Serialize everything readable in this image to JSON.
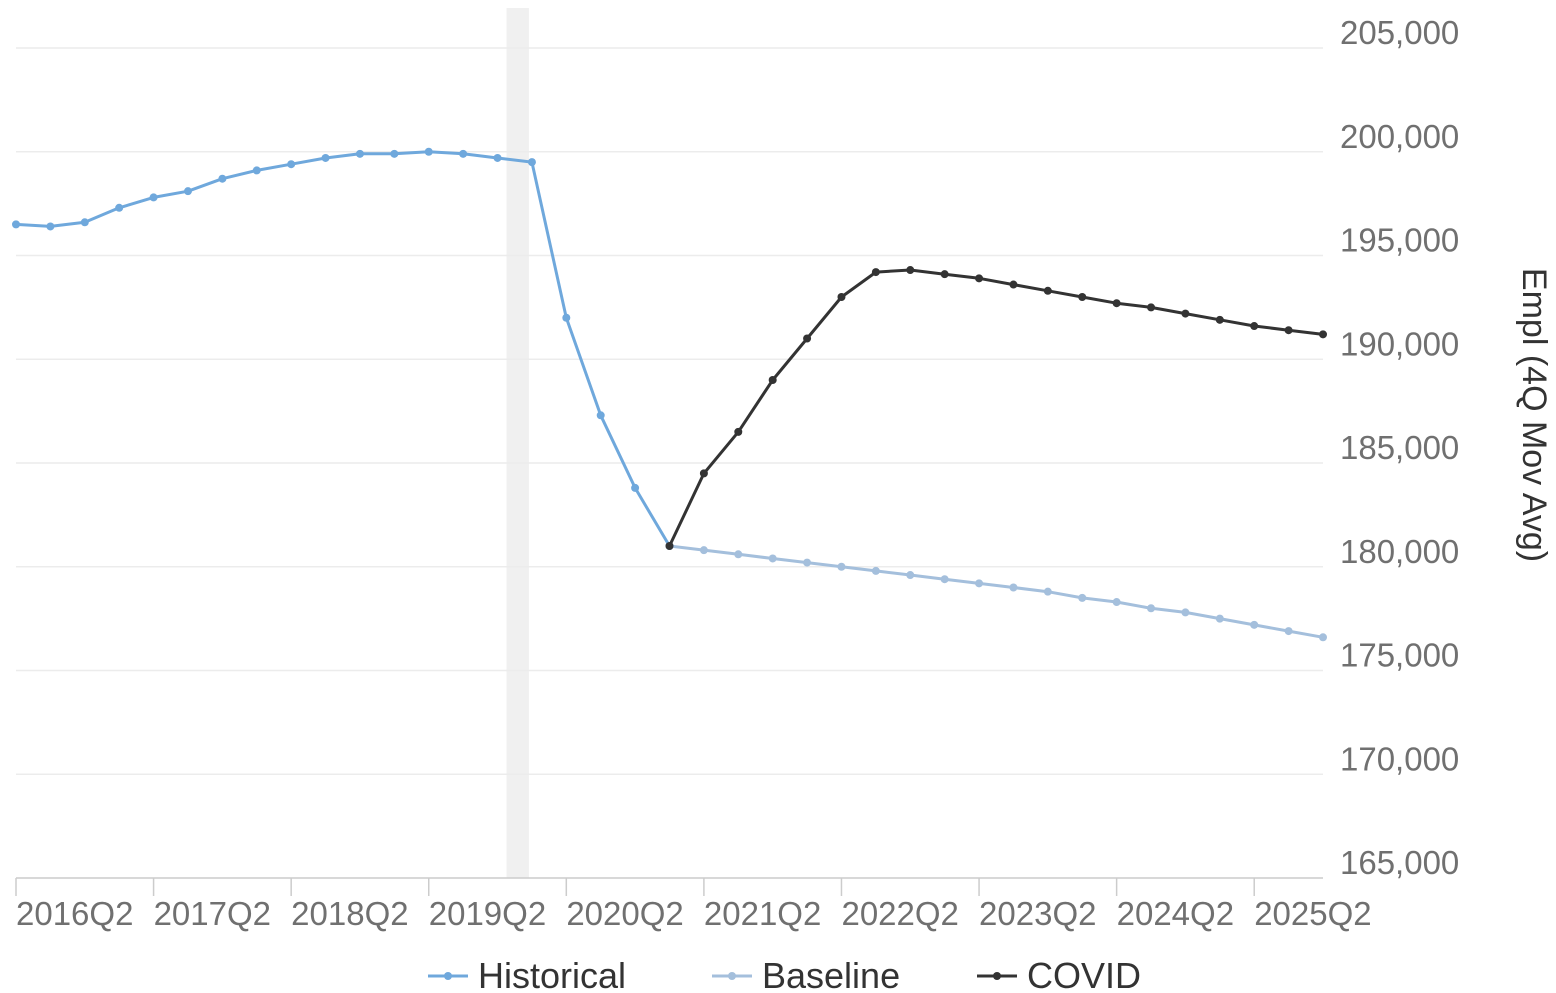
{
  "chart_data": {
    "type": "line",
    "title": "",
    "xlabel": "",
    "ylabel": "Empl (4Q Mov Avg)",
    "y_axis_side": "right",
    "ylim": [
      165000,
      205000
    ],
    "y_ticks": [
      "205,000",
      "200,000",
      "195,000",
      "190,000",
      "185,000",
      "180,000",
      "175,000",
      "170,000",
      "165,000"
    ],
    "x_tick_labels": [
      "2016Q2",
      "2017Q2",
      "2018Q2",
      "2019Q2",
      "2020Q2",
      "2021Q2",
      "2022Q2",
      "2023Q2",
      "2024Q2",
      "2025Q2"
    ],
    "x_range": [
      "2016Q2",
      "2025Q4"
    ],
    "grid": true,
    "legend_position": "bottom",
    "shaded_period": {
      "from": "2019Q4",
      "to": "2020Q1",
      "color": "#f0f0f0"
    },
    "series": [
      {
        "name": "Historical",
        "color": "#6fa8dc",
        "x": [
          "2016Q2",
          "2016Q3",
          "2016Q4",
          "2017Q1",
          "2017Q2",
          "2017Q3",
          "2017Q4",
          "2018Q1",
          "2018Q2",
          "2018Q3",
          "2018Q4",
          "2019Q1",
          "2019Q2",
          "2019Q3",
          "2019Q4",
          "2020Q1",
          "2020Q2",
          "2020Q3",
          "2020Q4",
          "2021Q1"
        ],
        "values": [
          196500,
          196400,
          196600,
          197300,
          197800,
          198100,
          198700,
          199100,
          199400,
          199700,
          199900,
          199900,
          200000,
          199900,
          199700,
          199500,
          192000,
          187300,
          183800,
          181000
        ]
      },
      {
        "name": "Baseline",
        "color": "#a4bfdc",
        "x": [
          "2021Q1",
          "2021Q2",
          "2021Q3",
          "2021Q4",
          "2022Q1",
          "2022Q2",
          "2022Q3",
          "2022Q4",
          "2023Q1",
          "2023Q2",
          "2023Q3",
          "2023Q4",
          "2024Q1",
          "2024Q2",
          "2024Q3",
          "2024Q4",
          "2025Q1",
          "2025Q2",
          "2025Q3",
          "2025Q4"
        ],
        "values": [
          181000,
          180800,
          180600,
          180400,
          180200,
          180000,
          179800,
          179600,
          179400,
          179200,
          179000,
          178800,
          178500,
          178300,
          178000,
          177800,
          177500,
          177200,
          176900,
          176600
        ]
      },
      {
        "name": "COVID",
        "color": "#333333",
        "x": [
          "2021Q1",
          "2021Q2",
          "2021Q3",
          "2021Q4",
          "2022Q1",
          "2022Q2",
          "2022Q3",
          "2022Q4",
          "2023Q1",
          "2023Q2",
          "2023Q3",
          "2023Q4",
          "2024Q1",
          "2024Q2",
          "2024Q3",
          "2024Q4",
          "2025Q1",
          "2025Q2",
          "2025Q3",
          "2025Q4"
        ],
        "values": [
          181000,
          184500,
          186500,
          189000,
          191000,
          193000,
          194200,
          194300,
          194100,
          193900,
          193600,
          193300,
          193000,
          192700,
          192500,
          192200,
          191900,
          191600,
          191400,
          191200
        ]
      }
    ]
  }
}
